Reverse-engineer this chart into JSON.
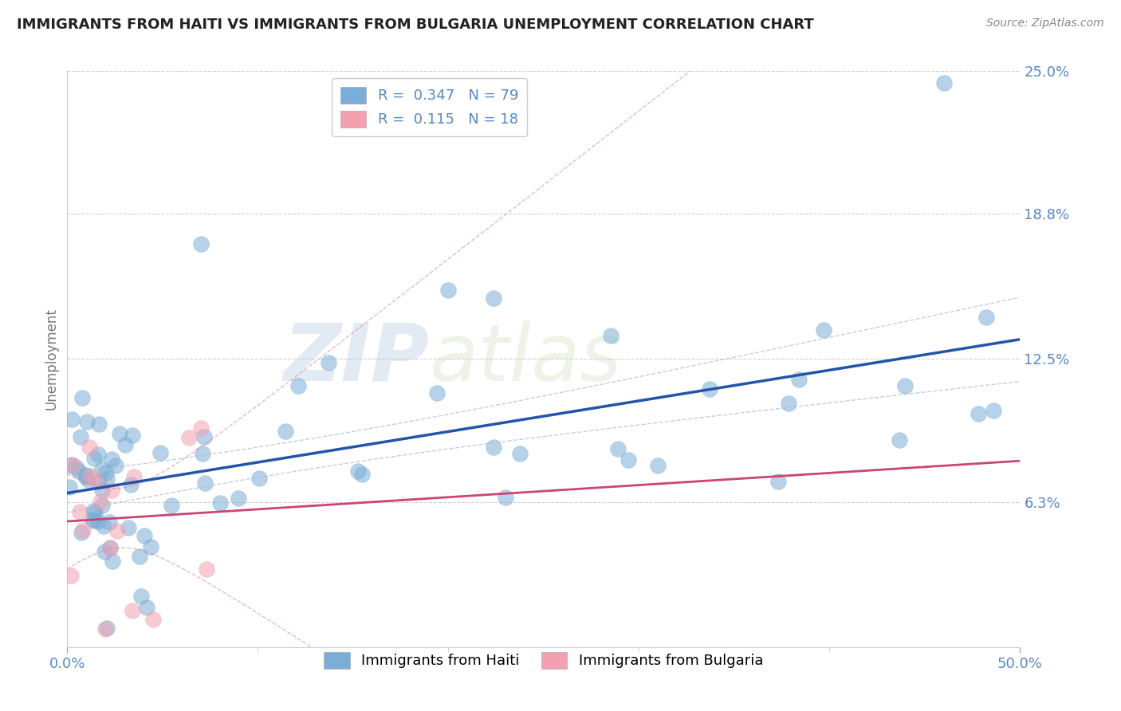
{
  "title": "IMMIGRANTS FROM HAITI VS IMMIGRANTS FROM BULGARIA UNEMPLOYMENT CORRELATION CHART",
  "source": "Source: ZipAtlas.com",
  "ylabel": "Unemployment",
  "x_min": 0.0,
  "x_max": 50.0,
  "y_min": 0.0,
  "y_max": 25.0,
  "y_ticks": [
    6.3,
    12.5,
    18.8,
    25.0
  ],
  "haiti_R": 0.347,
  "haiti_N": 79,
  "bulgaria_R": 0.115,
  "bulgaria_N": 18,
  "haiti_color": "#7aaed6",
  "haiti_line_color": "#2255aa",
  "haiti_conf_color": "#aabbcc",
  "bulgaria_color": "#f4a0b0",
  "bulgaria_line_color": "#cc4477",
  "bulgaria_conf_color": "#e08898",
  "watermark_zip": "ZIP",
  "watermark_atlas": "atlas",
  "background_color": "#ffffff",
  "grid_color": "#cccccc",
  "title_color": "#222222",
  "axis_label_color": "#5588cc",
  "source_color": "#888888"
}
